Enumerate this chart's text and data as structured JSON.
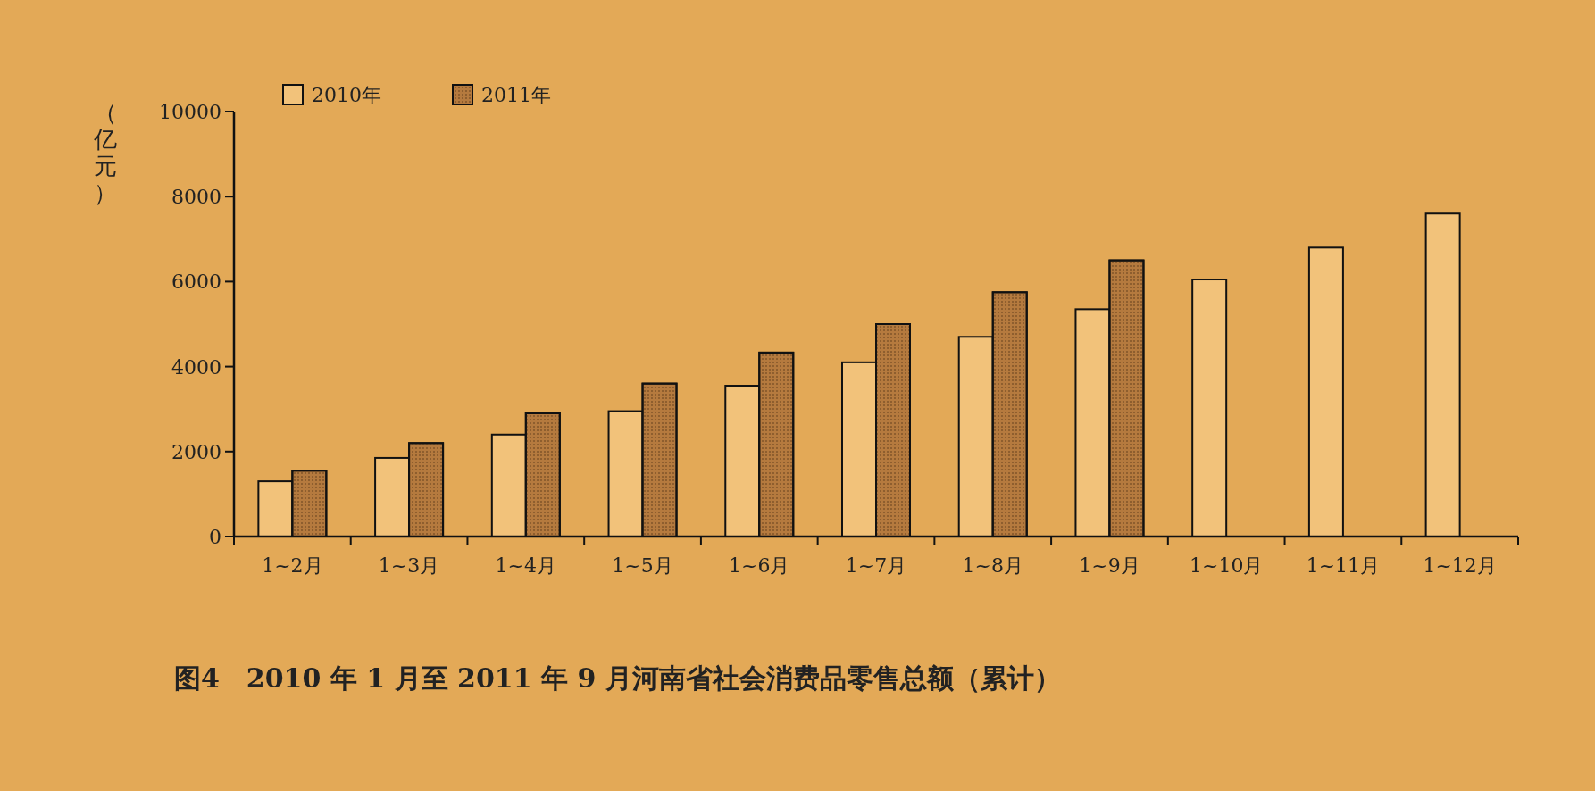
{
  "chart_data": {
    "type": "bar",
    "title": "图4　2010 年 1 月至 2011 年 9 月河南省社会消费品零售总额（累计）",
    "ylabel": "（亿元）",
    "categories": [
      "1~2月",
      "1~3月",
      "1~4月",
      "1~5月",
      "1~6月",
      "1~7月",
      "1~8月",
      "1~9月",
      "1~10月",
      "1~11月",
      "1~12月"
    ],
    "series": [
      {
        "name": "2010年",
        "color": "#f2c27a",
        "values": [
          1300,
          1850,
          2400,
          2950,
          3550,
          4100,
          4700,
          5350,
          6050,
          6800,
          7600
        ]
      },
      {
        "name": "2011年",
        "color": "#b57a3e",
        "values": [
          1550,
          2200,
          2900,
          3600,
          4330,
          5000,
          5750,
          6500,
          null,
          null,
          null
        ]
      }
    ],
    "ylim": [
      0,
      10000
    ],
    "yticks": [
      0,
      2000,
      4000,
      6000,
      8000,
      10000
    ],
    "legend": "top left",
    "grid": false
  }
}
